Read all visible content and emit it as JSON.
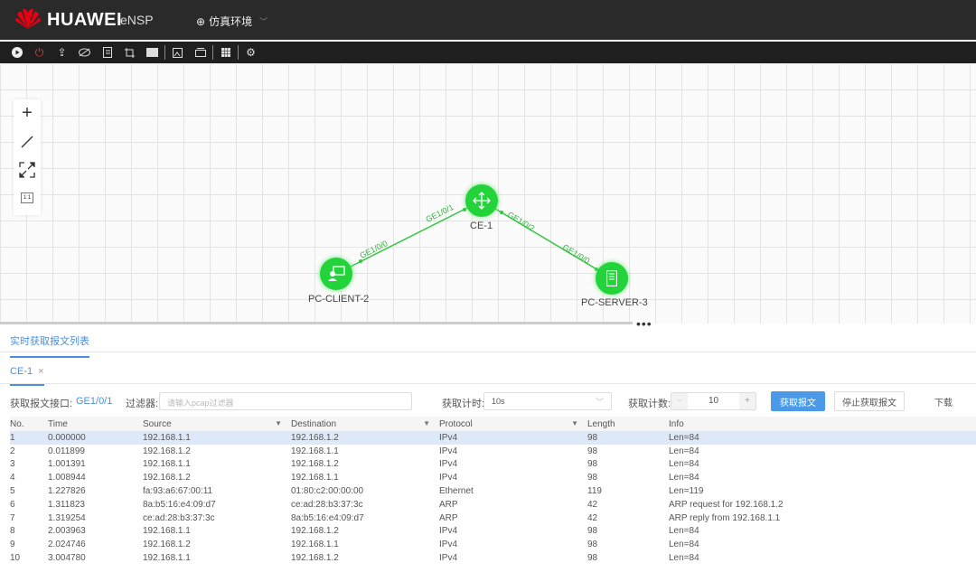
{
  "header": {
    "brand": "HUAWEI",
    "product": "eNSP",
    "environment": "仿真环境",
    "brand_color": "#e60012"
  },
  "toolbar": {
    "icons": [
      "play-icon",
      "power-icon",
      "upload-icon",
      "hide-icon",
      "list-icon",
      "crop-icon",
      "screen-icon",
      "image-icon",
      "window-icon",
      "grid-icon",
      "settings-icon"
    ],
    "power_color": "#e53935"
  },
  "topology": {
    "node_color": "#22d43a",
    "nodes": [
      {
        "name": "CE-1",
        "type": "switch"
      },
      {
        "name": "PC-CLIENT-2",
        "type": "client"
      },
      {
        "name": "PC-SERVER-3",
        "type": "server"
      }
    ],
    "links": [
      {
        "a_port": "GE1/0/0",
        "b_port": "GE1/0/1"
      },
      {
        "a_port": "GE1/0/2",
        "b_port": "GE1/0/0"
      }
    ],
    "zoom_reset_label": "1:1"
  },
  "panel": {
    "tab": "实时获取报文列表",
    "device_tab": "CE-1",
    "close": "×",
    "iface_label": "获取报文接口:",
    "iface_value": "GE1/0/1",
    "filter_label": "过滤器:",
    "filter_placeholder": "请输入pcap过滤器",
    "timer_label": "获取计时:",
    "timer_value": "10s",
    "count_label": "获取计数:",
    "count_minus": "-",
    "count_value": "10",
    "count_plus": "+",
    "start_button": "获取报文",
    "stop_button": "停止获取报文",
    "download": "下载",
    "accent": "#4a90d9"
  },
  "table": {
    "columns": [
      "No.",
      "Time",
      "Source",
      "Destination",
      "Protocol",
      "Length",
      "Info"
    ],
    "rows": [
      [
        "1",
        "0.000000",
        "192.168.1.1",
        "192.168.1.2",
        "IPv4",
        "98",
        "Len=84"
      ],
      [
        "2",
        "0.011899",
        "192.168.1.2",
        "192.168.1.1",
        "IPv4",
        "98",
        "Len=84"
      ],
      [
        "3",
        "1.001391",
        "192.168.1.1",
        "192.168.1.2",
        "IPv4",
        "98",
        "Len=84"
      ],
      [
        "4",
        "1.008944",
        "192.168.1.2",
        "192.168.1.1",
        "IPv4",
        "98",
        "Len=84"
      ],
      [
        "5",
        "1.227826",
        "fa:93:a6:67:00:11",
        "01:80:c2:00:00:00",
        "Ethernet",
        "119",
        "Len=119"
      ],
      [
        "6",
        "1.311823",
        "8a:b5:16:e4:09:d7",
        "ce:ad:28:b3:37:3c",
        "ARP",
        "42",
        "ARP request for 192.168.1.2"
      ],
      [
        "7",
        "1.319254",
        "ce:ad:28:b3:37:3c",
        "8a:b5:16:e4:09:d7",
        "ARP",
        "42",
        "ARP reply from 192.168.1.1"
      ],
      [
        "8",
        "2.003963",
        "192.168.1.1",
        "192.168.1.2",
        "IPv4",
        "98",
        "Len=84"
      ],
      [
        "9",
        "2.024746",
        "192.168.1.2",
        "192.168.1.1",
        "IPv4",
        "98",
        "Len=84"
      ],
      [
        "10",
        "3.004780",
        "192.168.1.1",
        "192.168.1.2",
        "IPv4",
        "98",
        "Len=84"
      ]
    ]
  }
}
